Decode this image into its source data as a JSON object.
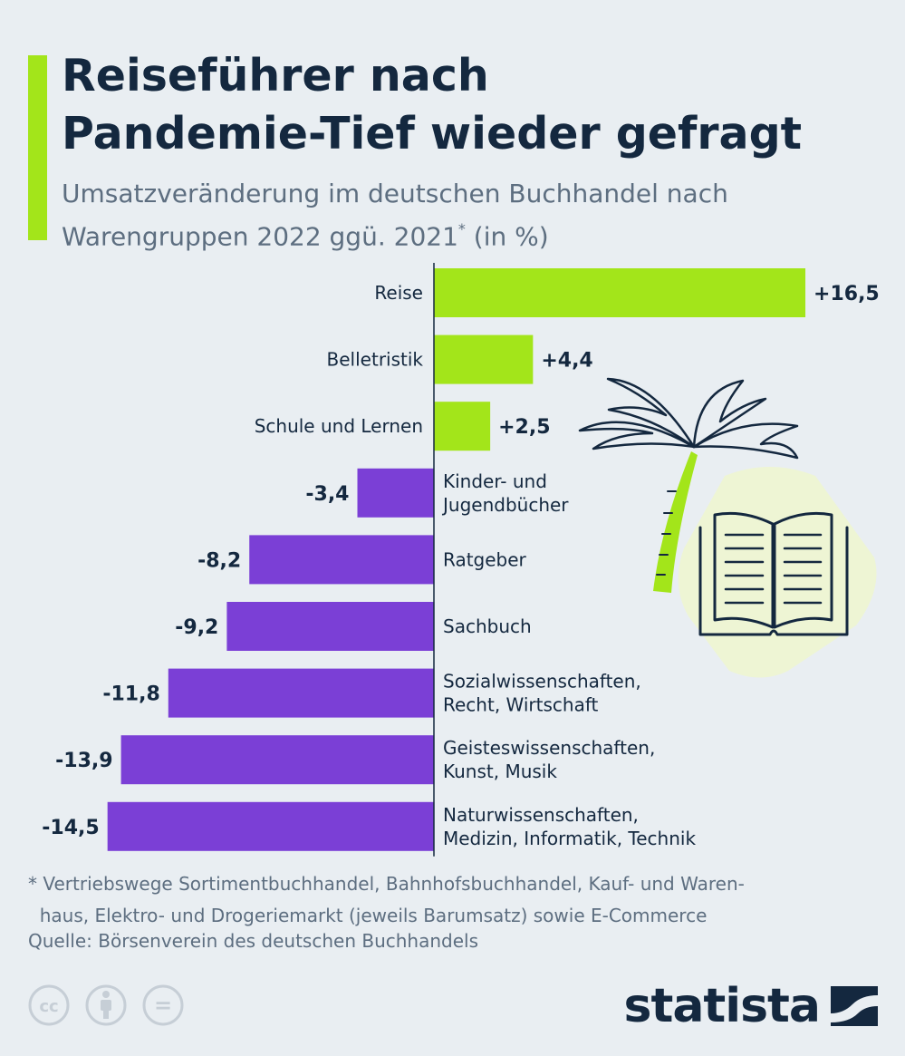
{
  "header": {
    "title_line1": "Reiseführer nach",
    "title_line2": "Pandemie-Tief wieder gefragt",
    "subtitle_line1": "Umsatzveränderung im deutschen Buchhandel nach",
    "subtitle_line2_a": "Warengruppen 2022 ggü. 2021",
    "subtitle_asterisk": "*",
    "subtitle_line2_b": " (in %)"
  },
  "chart_data": {
    "type": "bar",
    "orientation": "horizontal",
    "categories": [
      [
        "Reise"
      ],
      [
        "Belletristik"
      ],
      [
        "Schule und Lernen"
      ],
      [
        "Kinder- und",
        "Jugendbücher"
      ],
      [
        "Ratgeber"
      ],
      [
        "Sachbuch"
      ],
      [
        "Sozialwissenschaften,",
        "Recht, Wirtschaft"
      ],
      [
        "Geisteswissenschaften,",
        "Kunst, Musik"
      ],
      [
        "Naturwissenschaften,",
        "Medizin, Informatik, Technik"
      ]
    ],
    "values": [
      16.5,
      4.4,
      2.5,
      -3.4,
      -8.2,
      -9.2,
      -11.8,
      -13.9,
      -14.5
    ],
    "value_labels": [
      "+16,5",
      "+4,4",
      "+2,5",
      "-3,4",
      "-8,2",
      "-9,2",
      "-11,8",
      "-13,9",
      "-14,5"
    ],
    "colors": {
      "positive": "#a3e51a",
      "negative": "#7b3fd6"
    },
    "grid": false
  },
  "footnote": {
    "line1": "* Vertriebswege Sortimentbuchhandel, Bahnhofsbuchhandel, Kauf- und Waren-",
    "line2": "  haus, Elektro- und Drogeriemarkt (jeweils Barumsatz) sowie E-Commerce"
  },
  "source": "Quelle: Börsenverein des deutschen Buchhandels",
  "branding": {
    "logo_text": "statista",
    "icons": [
      "cc-icon",
      "by-person-icon",
      "no-derivatives-icon"
    ],
    "cc_glyph": "cc",
    "nd_glyph": "="
  },
  "colors": {
    "background": "#e9eef2",
    "accent": "#a3e51a",
    "title": "#14283f",
    "muted": "#5d6e80",
    "negative": "#7b3fd6",
    "illustration_bg": "#eef5d4"
  }
}
